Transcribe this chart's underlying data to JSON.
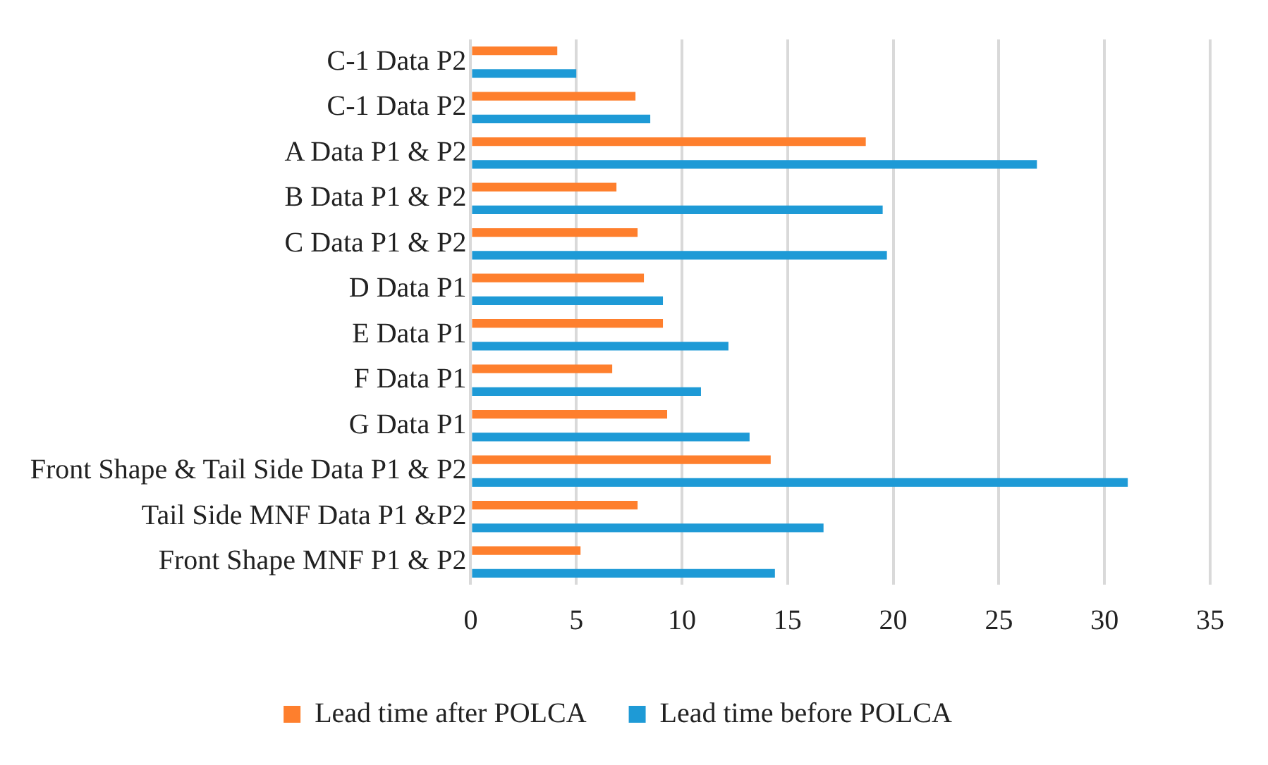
{
  "chart_data": {
    "type": "bar",
    "orientation": "horizontal",
    "categories": [
      "C-1 Data P2",
      "C-1 Data P2",
      "A Data P1 & P2",
      "B Data P1 & P2",
      "C Data P1 & P2",
      "D Data P1",
      "E Data P1",
      "F Data P1",
      "G Data P1",
      "Front Shape & Tail Side Data P1 & P2",
      "Tail Side MNF Data P1 &P2",
      "Front Shape MNF P1 & P2"
    ],
    "series": [
      {
        "name": "Lead time after POLCA",
        "color": "#fe7f2d",
        "values": [
          4.1,
          7.8,
          18.7,
          6.9,
          7.9,
          8.2,
          9.1,
          6.7,
          9.3,
          14.2,
          7.9,
          5.2
        ]
      },
      {
        "name": "Lead time before POLCA",
        "color": "#1e9ad6",
        "values": [
          5.0,
          8.5,
          26.8,
          19.5,
          19.7,
          9.1,
          12.2,
          10.9,
          13.2,
          31.1,
          16.7,
          14.4
        ]
      }
    ],
    "xlim": [
      0,
      35
    ],
    "xticks": [
      0,
      5,
      10,
      15,
      20,
      25,
      30,
      35
    ],
    "grid": "x",
    "legend": "bottom"
  }
}
